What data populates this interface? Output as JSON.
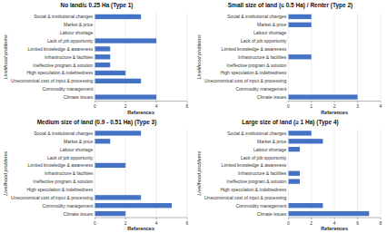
{
  "chart_data": [
    {
      "type": "bar",
      "orientation": "horizontal",
      "title": "No land/≤ 0.25 Ha (Type 1)",
      "categories": [
        "Social & institutional changes",
        "Market & price",
        "Labour shortage",
        "Lack of job opportunity",
        "Limited knowledge & awareness",
        "Infrastructure & facilities",
        "Ineffective program & solution",
        "High speculation & indebtedness",
        "Uneconomical cost of input & processing",
        "Commodity management",
        "Climate issues"
      ],
      "values": [
        3,
        0,
        0,
        4,
        1,
        1,
        1,
        2,
        3,
        0,
        4
      ],
      "color": "#4472C4",
      "xlim": [
        0,
        6
      ],
      "xticks": [
        0,
        2,
        4,
        6
      ],
      "grid": true,
      "xlabel": "References",
      "ylabel": "Livelihood problems"
    },
    {
      "type": "bar",
      "orientation": "horizontal",
      "title": "Small size of land (≤ 0.5 Ha) / Renter (Type 2)",
      "categories": [
        "Social & institutional changes",
        "Market & price",
        "Labour shortage",
        "Lack of job opportunity",
        "Limited knowledge & awareness",
        "Infrastructure & facilities",
        "Ineffective program & solution",
        "High speculation & indebtedness",
        "Uneconomical cost of input & processing",
        "Commodity management",
        "Climate issues"
      ],
      "values": [
        1,
        1,
        0,
        0,
        0,
        1,
        0,
        0,
        0,
        0,
        3
      ],
      "color": "#4472C4",
      "xlim": [
        0,
        4
      ],
      "xticks": [
        0,
        1,
        2,
        3,
        4
      ],
      "grid": true,
      "xlabel": "References",
      "ylabel": "Livelihood problems"
    },
    {
      "type": "bar",
      "orientation": "horizontal",
      "title": "Medium size of land (0.9 - 0.51 Ha) (Type 3)",
      "categories": [
        "Social & institutional changes",
        "Market & price",
        "Labour shortage",
        "Lack of job opportunity",
        "Limited knowledge & awareness",
        "Infrastructure & facilities",
        "Ineffective program & solution",
        "High speculation & indebtedness",
        "Uneconomical cost of input & processing",
        "Commodity management",
        "Climate issues"
      ],
      "values": [
        3,
        1,
        0,
        0,
        2,
        0,
        0,
        0,
        3,
        5,
        2
      ],
      "color": "#4472C4",
      "xlim": [
        0,
        6
      ],
      "xticks": [
        0,
        2,
        4,
        6
      ],
      "grid": true,
      "xlabel": "References",
      "ylabel": "Livelihood problems"
    },
    {
      "type": "bar",
      "orientation": "horizontal",
      "title": "Large size of land (≥ 1 Ha) (Type 4)",
      "categories": [
        "Social & institutional changes",
        "Market & price",
        "Labour shortage",
        "Lack of job opportunity",
        "Limited knowledge & awareness",
        "Infrastructure & facilities",
        "Ineffective program & solution",
        "High speculation & indebtedness",
        "Uneconomical cost of input & processing",
        "Commodity management",
        "Climate issues"
      ],
      "values": [
        2,
        3,
        1,
        0,
        0,
        1,
        1,
        0,
        0,
        3,
        7
      ],
      "color": "#4472C4",
      "xlim": [
        0,
        8
      ],
      "xticks": [
        0,
        2,
        4,
        6,
        8
      ],
      "grid": true,
      "xlabel": "References",
      "ylabel": "Livelihood problems"
    }
  ]
}
